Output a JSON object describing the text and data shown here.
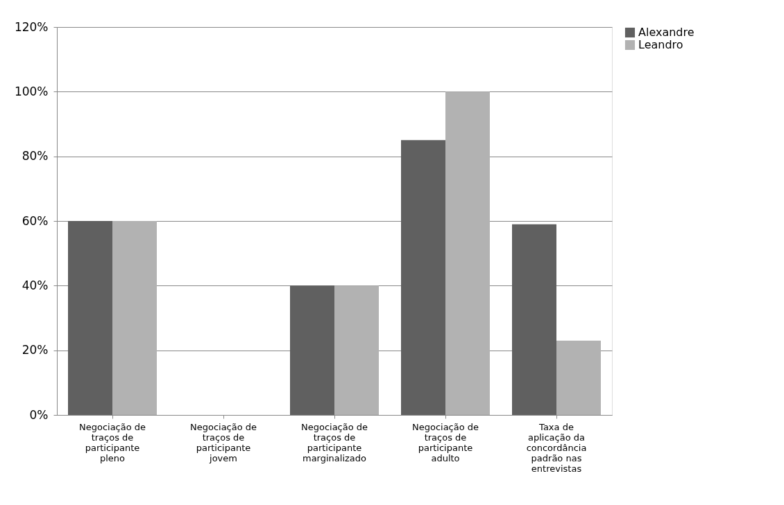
{
  "chart_data": {
    "type": "bar",
    "categories": [
      "Negociação de traços de participante pleno",
      "Negociação de traços de participante jovem",
      "Negociação de traços de participante marginalizado",
      "Negociação de traços de participante adulto",
      "Taxa de aplicação da concordância padrão nas entrevistas"
    ],
    "series": [
      {
        "name": "Alexandre",
        "color": "#606060",
        "values": [
          60,
          0,
          40,
          85,
          59
        ]
      },
      {
        "name": "Leandro",
        "color": "#b2b2b2",
        "values": [
          60,
          0,
          40,
          100,
          23
        ]
      }
    ],
    "ylim": [
      0,
      120
    ],
    "yticks": [
      {
        "value": 0,
        "label": "0%"
      },
      {
        "value": 20,
        "label": "20%"
      },
      {
        "value": 40,
        "label": "40%"
      },
      {
        "value": 60,
        "label": "60%"
      },
      {
        "value": 80,
        "label": "80%"
      },
      {
        "value": 100,
        "label": "100%"
      },
      {
        "value": 120,
        "label": "120%"
      }
    ],
    "grid": "y",
    "legend": "right"
  }
}
